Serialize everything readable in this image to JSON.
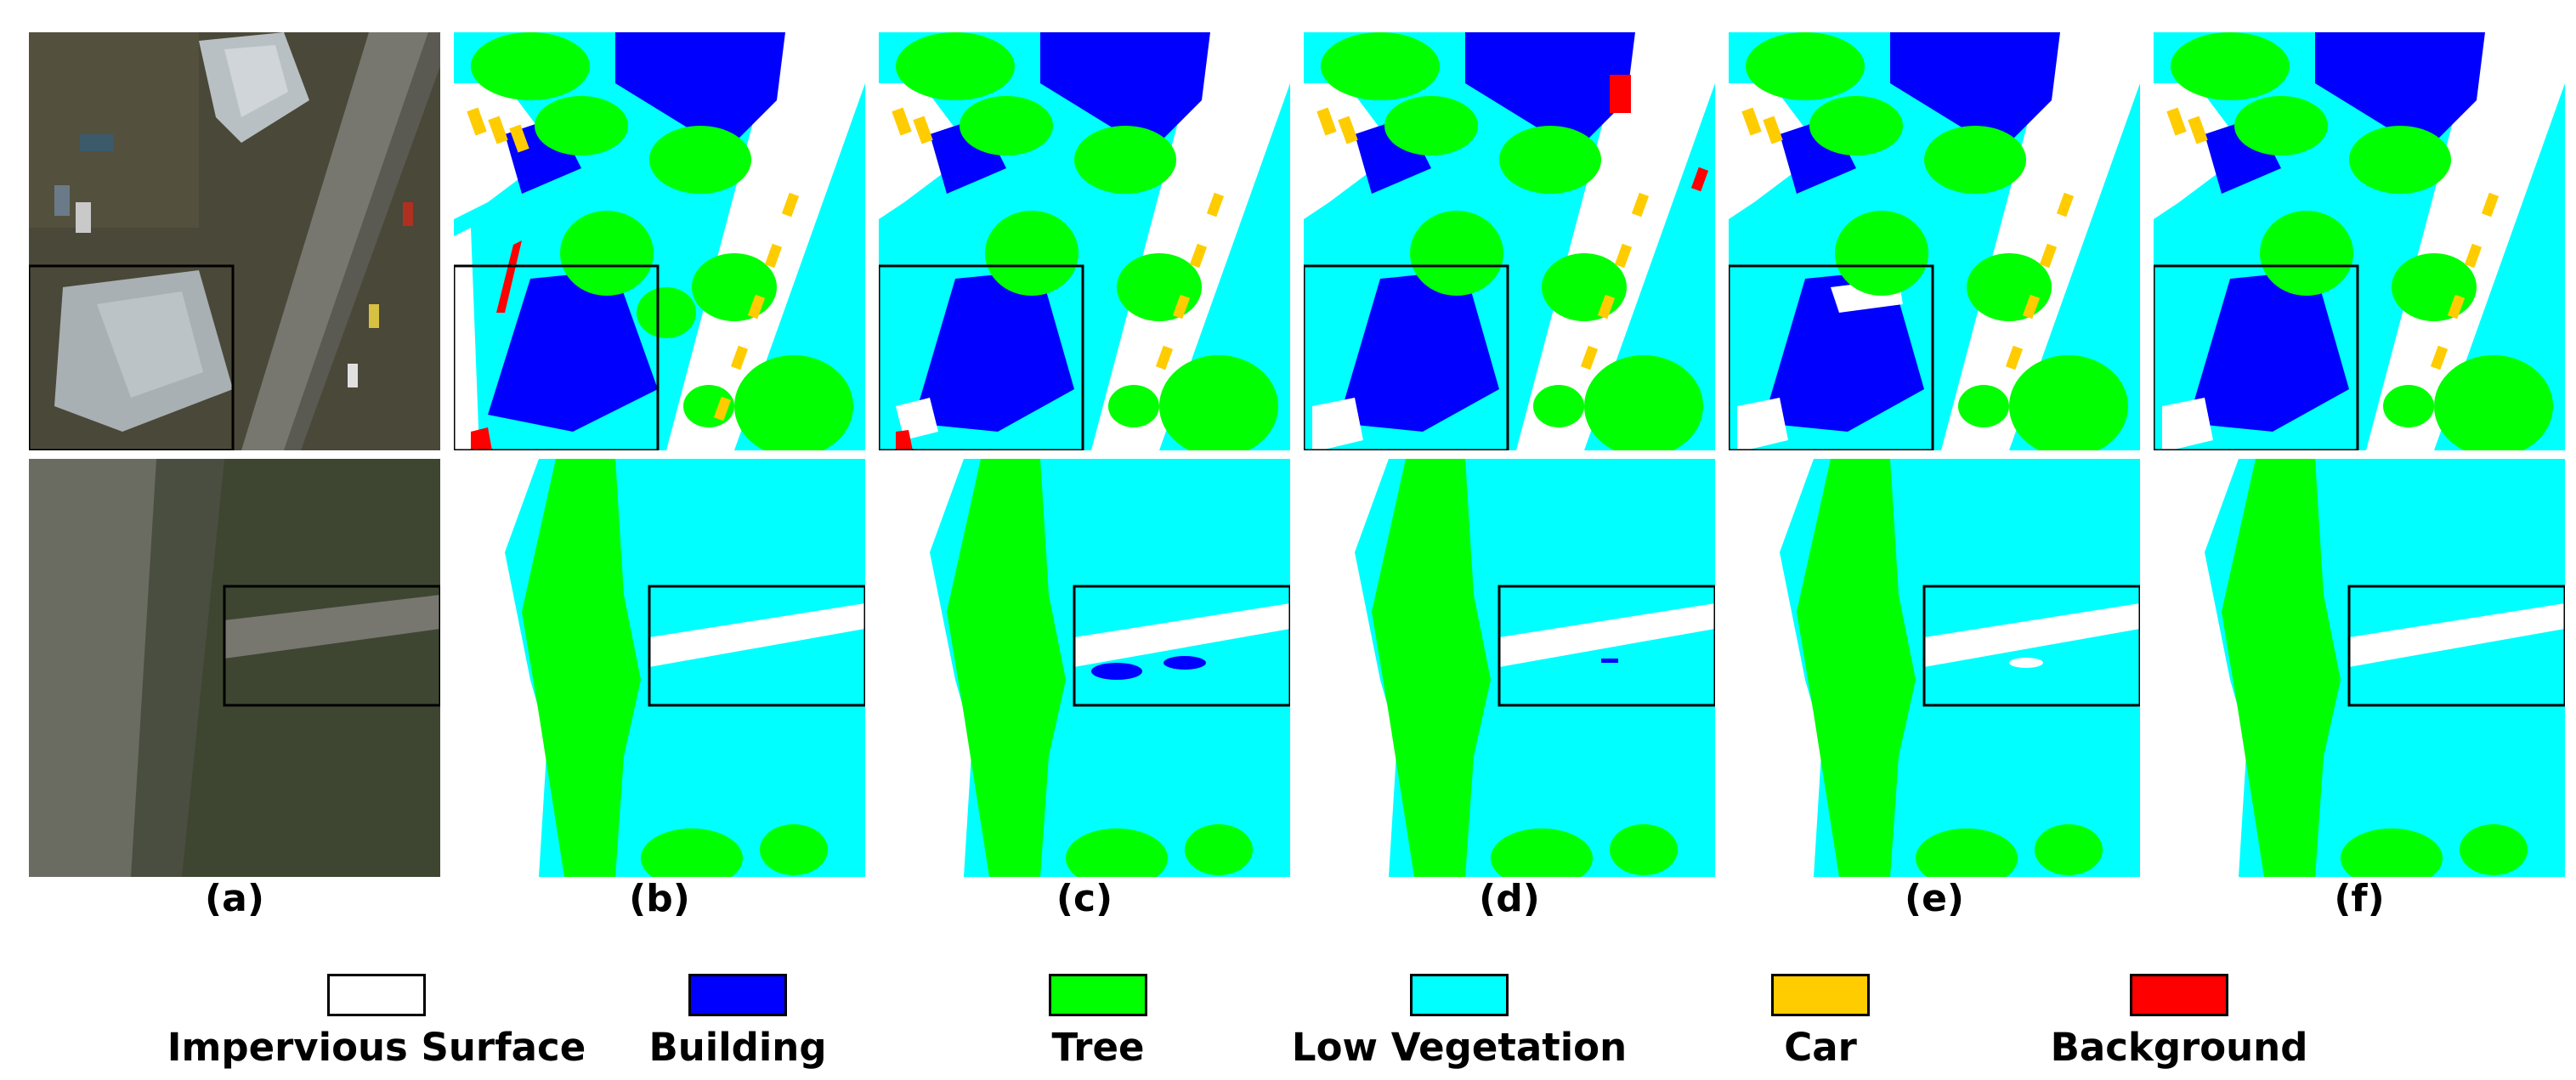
{
  "panel_labels": [
    "(a)",
    "(b)",
    "(c)",
    "(d)",
    "(e)",
    "(f)"
  ],
  "legend": [
    {
      "label": "Impervious Surface",
      "color": "#ffffff"
    },
    {
      "label": "Building",
      "color": "#0000ff"
    },
    {
      "label": "Tree",
      "color": "#00ff00"
    },
    {
      "label": "Low Vegetation",
      "color": "#00ffff"
    },
    {
      "label": "Car",
      "color": "#ffcc00"
    },
    {
      "label": "Background",
      "color": "#ff0000"
    }
  ],
  "aerial_colors": {
    "ground": "#4a4838",
    "road": "#777770",
    "roof": "#a8b0b4",
    "grass": "#3e4632"
  }
}
